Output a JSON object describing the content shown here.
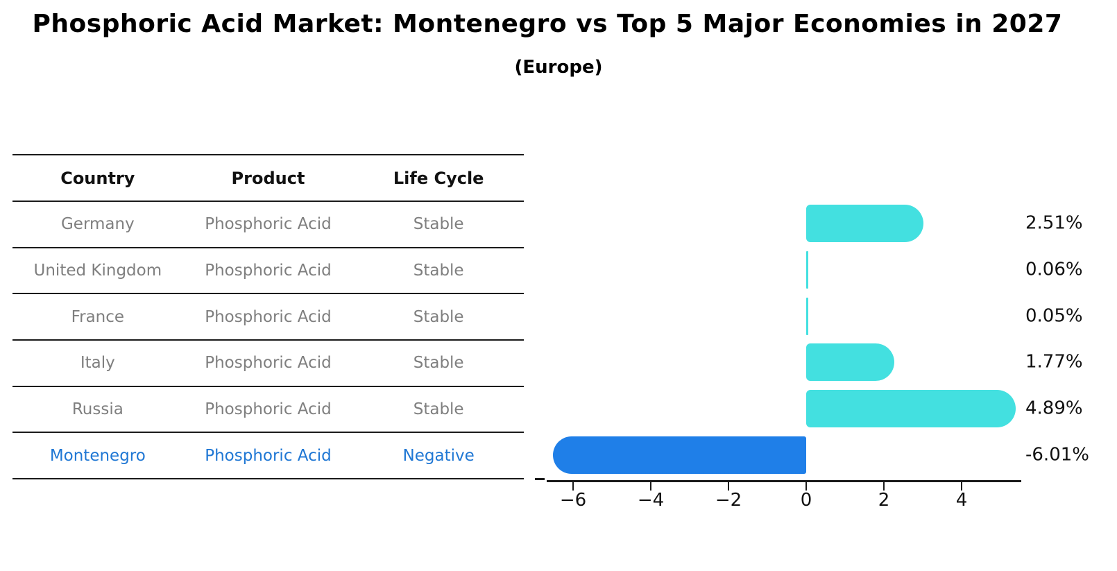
{
  "title": "Phosphoric Acid Market: Montenegro vs Top 5 Major Economies in 2027",
  "subtitle": "(Europe)",
  "table": {
    "headers": [
      "Country",
      "Product",
      "Life Cycle"
    ],
    "rows": [
      {
        "country": "Germany",
        "product": "Phosphoric Acid",
        "life_cycle": "Stable"
      },
      {
        "country": "United Kingdom",
        "product": "Phosphoric Acid",
        "life_cycle": "Stable"
      },
      {
        "country": "France",
        "product": "Phosphoric Acid",
        "life_cycle": "Stable"
      },
      {
        "country": "Italy",
        "product": "Phosphoric Acid",
        "life_cycle": "Stable"
      },
      {
        "country": "Russia",
        "product": "Phosphoric Acid",
        "life_cycle": "Stable"
      },
      {
        "country": "Montenegro",
        "product": "Phosphoric Acid",
        "life_cycle": "Negative"
      }
    ]
  },
  "chart_data": {
    "type": "bar",
    "orientation": "horizontal",
    "title": "Phosphoric Acid Market: Montenegro vs Top 5 Major Economies in 2027 (Europe)",
    "categories": [
      "Germany",
      "United Kingdom",
      "France",
      "Italy",
      "Russia",
      "Montenegro"
    ],
    "values": [
      2.51,
      0.06,
      0.05,
      1.77,
      4.89,
      -6.01
    ],
    "value_labels": [
      "2.51%",
      "0.06%",
      "0.05%",
      "1.77%",
      "4.89%",
      "-6.01%"
    ],
    "x_ticks": [
      -6,
      -4,
      -2,
      0,
      2,
      4
    ],
    "x_tick_labels": [
      "−6",
      "−4",
      "−2",
      "0",
      "2",
      "4"
    ],
    "xlim": [
      -6.7,
      5.55
    ],
    "grid": false,
    "legend": "none",
    "colors": {
      "positive_bar": "#43e0e0",
      "negative_bar": "#1f7fe8",
      "highlight_text": "#1f77d4",
      "muted_text": "#7f7f7f",
      "axis": "#1a1a1a"
    }
  }
}
